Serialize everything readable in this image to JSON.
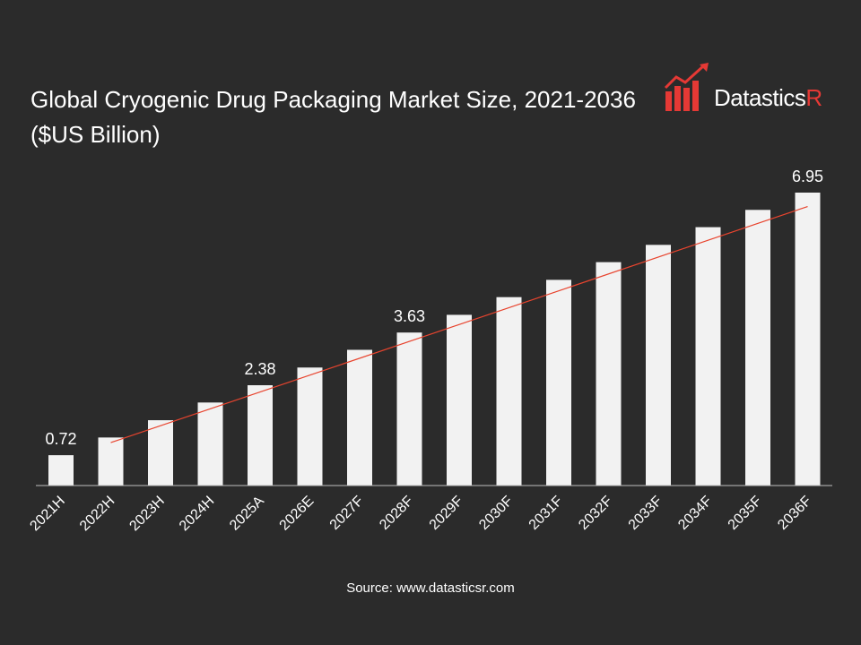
{
  "chart_data": {
    "type": "bar",
    "title": "Global Cryogenic Drug Packaging Market Size, 2021-2036 ($US Billion)",
    "categories": [
      "2021H",
      "2022H",
      "2023H",
      "2024H",
      "2025A",
      "2026E",
      "2027F",
      "2028F",
      "2029F",
      "2030F",
      "2031F",
      "2032F",
      "2033F",
      "2034F",
      "2035F",
      "2036F"
    ],
    "values": [
      0.72,
      1.14,
      1.55,
      1.97,
      2.38,
      2.8,
      3.22,
      3.63,
      4.05,
      4.47,
      4.88,
      5.3,
      5.71,
      6.13,
      6.54,
      6.95
    ],
    "data_labels": {
      "0": "0.72",
      "4": "2.38",
      "7": "3.63",
      "15": "6.95"
    },
    "trendline": {
      "start_index": 1,
      "end_index": 15,
      "start_value": 1.02,
      "end_value": 6.62
    },
    "ylim": [
      0,
      6.95
    ],
    "grid": false,
    "bar_color": "#f2f2f2",
    "trend_color": "#e8442e",
    "background": "#2b2b2b"
  },
  "logo": {
    "brand_main": "Datastics",
    "brand_accent": "R"
  },
  "source": "Source: www.datasticsr.com"
}
